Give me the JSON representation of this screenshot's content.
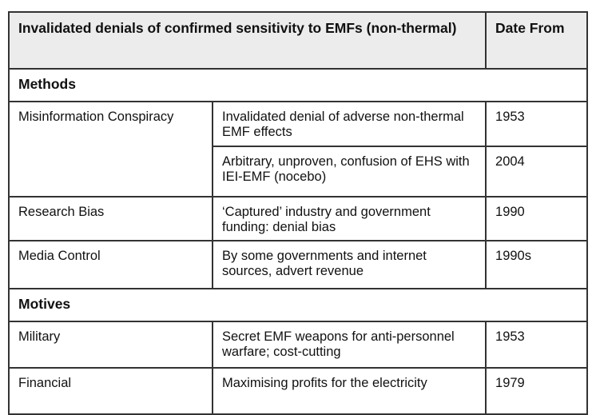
{
  "header": {
    "title": "Invalidated denials of confirmed sensitivity to EMFs (non-thermal)",
    "date_col": "Date From"
  },
  "sections": [
    {
      "label": "Methods",
      "rows": [
        {
          "category": "Misinformation Conspiracy",
          "description": "Invalidated denial of adverse non-thermal EMF effects",
          "date": "1953"
        },
        {
          "category": "",
          "description": "Arbitrary, unproven, confusion of EHS with IEI-EMF (nocebo)",
          "date": "2004"
        },
        {
          "category": "Research Bias",
          "description": "‘Captured’ industry and government funding: denial bias",
          "date": "1990"
        },
        {
          "category": "Media Control",
          "description": "By some governments and internet sources, advert revenue",
          "date": "1990s"
        }
      ]
    },
    {
      "label": "Motives",
      "rows": [
        {
          "category": "Military",
          "description": "Secret EMF weapons for anti-personnel warfare; cost-cutting",
          "date": "1953"
        },
        {
          "category": "Financial",
          "description": "Maximising profits for the electricity",
          "date": "1979"
        }
      ]
    }
  ]
}
